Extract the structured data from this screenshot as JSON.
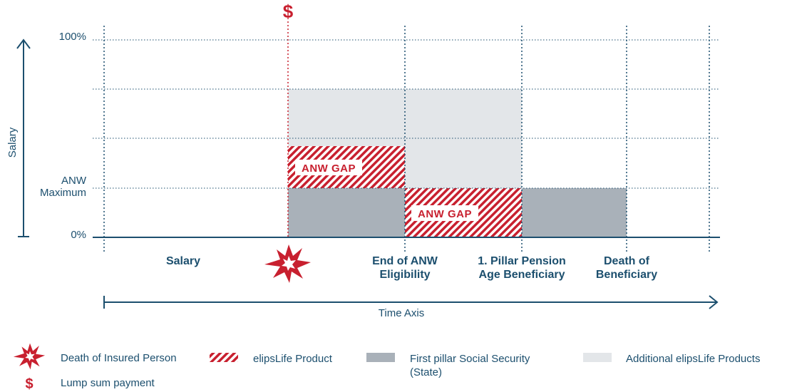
{
  "colors": {
    "navy": "#1c4f6e",
    "red": "#c8202f",
    "gray_dark": "#a9b1b9",
    "gray_light": "#e3e6e9"
  },
  "y_axis": {
    "title": "Salary",
    "labels": {
      "top": "100%",
      "anw_line1": "ANW",
      "anw_line2": "Maximum",
      "zero": "0%"
    }
  },
  "x_axis": {
    "title": "Time Axis",
    "categories": [
      {
        "line1": "Salary",
        "line2": ""
      },
      {
        "line1": "End of ANW",
        "line2": "Eligibility"
      },
      {
        "line1": "1. Pillar Pension",
        "line2": "Age Beneficiary"
      },
      {
        "line1": "Death of",
        "line2": "Beneficiary"
      }
    ]
  },
  "gap_labels": [
    "ANW GAP",
    "ANW GAP"
  ],
  "icons": {
    "top_marker": "dollar-icon",
    "event_marker": "explosion-icon"
  },
  "top_marker_text": "$",
  "legend": [
    {
      "icon": "explosion-icon",
      "text": "Death of Insured Person"
    },
    {
      "icon": "dollar-icon",
      "symbol": "$",
      "text": "Lump sum payment"
    },
    {
      "icon": "hatch-swatch",
      "text": "elipsLife Product"
    },
    {
      "icon": "gray-swatch",
      "text1": "First pillar Social Security",
      "text2": "(State)"
    },
    {
      "icon": "light-gray-swatch",
      "text": "Additional elipsLife Products"
    }
  ]
}
